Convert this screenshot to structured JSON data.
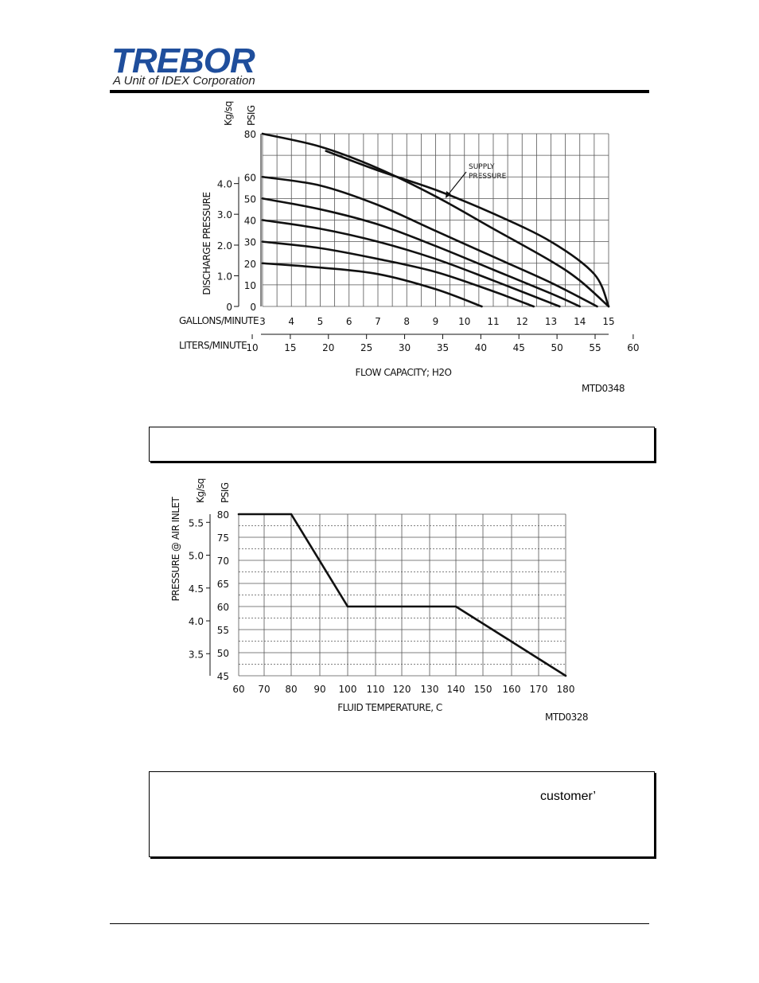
{
  "header": {
    "logo_text": "TREBOR",
    "logo_subtitle": "A Unit of IDEX Corporation",
    "brand_color": "#1f4e9c"
  },
  "note_box_2": {
    "text": "customer’"
  },
  "chart_data": [
    {
      "type": "line",
      "xlabel": "FLOW CAPACITY; H2O",
      "x_axis_label": "GALLONS/MINUTE",
      "x2_axis_label": "LITERS/MINUTE",
      "ylabel": "DISCHARGE PRESSURE",
      "y_axis_title": "PSIG",
      "y2_axis_title": "Kg/sq",
      "code": "MTD0348",
      "xlim": [
        3,
        15
      ],
      "ylim": [
        0,
        80
      ],
      "x_ticks": [
        "3",
        "4",
        "5",
        "6",
        "7",
        "8",
        "9",
        "10",
        "11",
        "12",
        "13",
        "14",
        "15"
      ],
      "y_ticks": [
        "0",
        "10",
        "20",
        "30",
        "40",
        "50",
        "60",
        "80"
      ],
      "y2_ticks": [
        "0",
        "1.0",
        "2.0",
        "3.0",
        "4.0"
      ],
      "x2_ticks": [
        "10",
        "15",
        "20",
        "25",
        "30",
        "35",
        "40",
        "45",
        "50",
        "55",
        "60"
      ],
      "annotation": "SUPPLY\nPRESSURE",
      "annotation_lines": [
        "SUPPLY",
        "PRESSURE"
      ],
      "grid": true,
      "series": [
        {
          "x": [
            3,
            5,
            7,
            9,
            11,
            13,
            14,
            15
          ],
          "y": [
            80,
            74,
            64,
            51,
            36,
            21,
            12,
            0
          ]
        },
        {
          "x": [
            5.2,
            7,
            9,
            11,
            13,
            14.5,
            15
          ],
          "y": [
            72,
            63,
            54,
            43,
            30,
            15,
            0
          ]
        },
        {
          "x": [
            3,
            5,
            7,
            9,
            11,
            13,
            14.6
          ],
          "y": [
            60,
            56,
            47,
            35,
            23,
            11,
            0
          ]
        },
        {
          "x": [
            3,
            5,
            7,
            9,
            11,
            13,
            14
          ],
          "y": [
            50,
            45,
            38,
            28,
            17,
            6,
            0
          ]
        },
        {
          "x": [
            3,
            5,
            7,
            9,
            11,
            13.3
          ],
          "y": [
            40,
            36,
            30,
            22,
            12,
            0
          ]
        },
        {
          "x": [
            3,
            5,
            7,
            9,
            11,
            12.4
          ],
          "y": [
            30,
            27,
            22,
            16,
            7,
            0
          ]
        },
        {
          "x": [
            3,
            5,
            7,
            9,
            10.6
          ],
          "y": [
            20,
            18,
            15,
            8,
            0
          ]
        }
      ]
    },
    {
      "type": "line",
      "xlabel": "FLUID TEMPERATURE, C",
      "ylabel": "PRESSURE @ AIR INLET",
      "y_axis_title": "PSIG",
      "y2_axis_title": "Kg/sq",
      "code": "MTD0328",
      "xlim": [
        60,
        180
      ],
      "ylim": [
        45,
        80
      ],
      "x_ticks": [
        "60",
        "70",
        "80",
        "90",
        "100",
        "110",
        "120",
        "130",
        "140",
        "150",
        "160",
        "170",
        "180"
      ],
      "y_ticks": [
        "45",
        "50",
        "55",
        "60",
        "65",
        "70",
        "75",
        "80"
      ],
      "y2_ticks": [
        "3.5",
        "4.0",
        "4.5",
        "5.0",
        "5.5"
      ],
      "grid": true,
      "series": [
        {
          "x": [
            60,
            80,
            100,
            140,
            180
          ],
          "y": [
            80,
            80,
            60,
            60,
            45
          ]
        }
      ]
    }
  ]
}
